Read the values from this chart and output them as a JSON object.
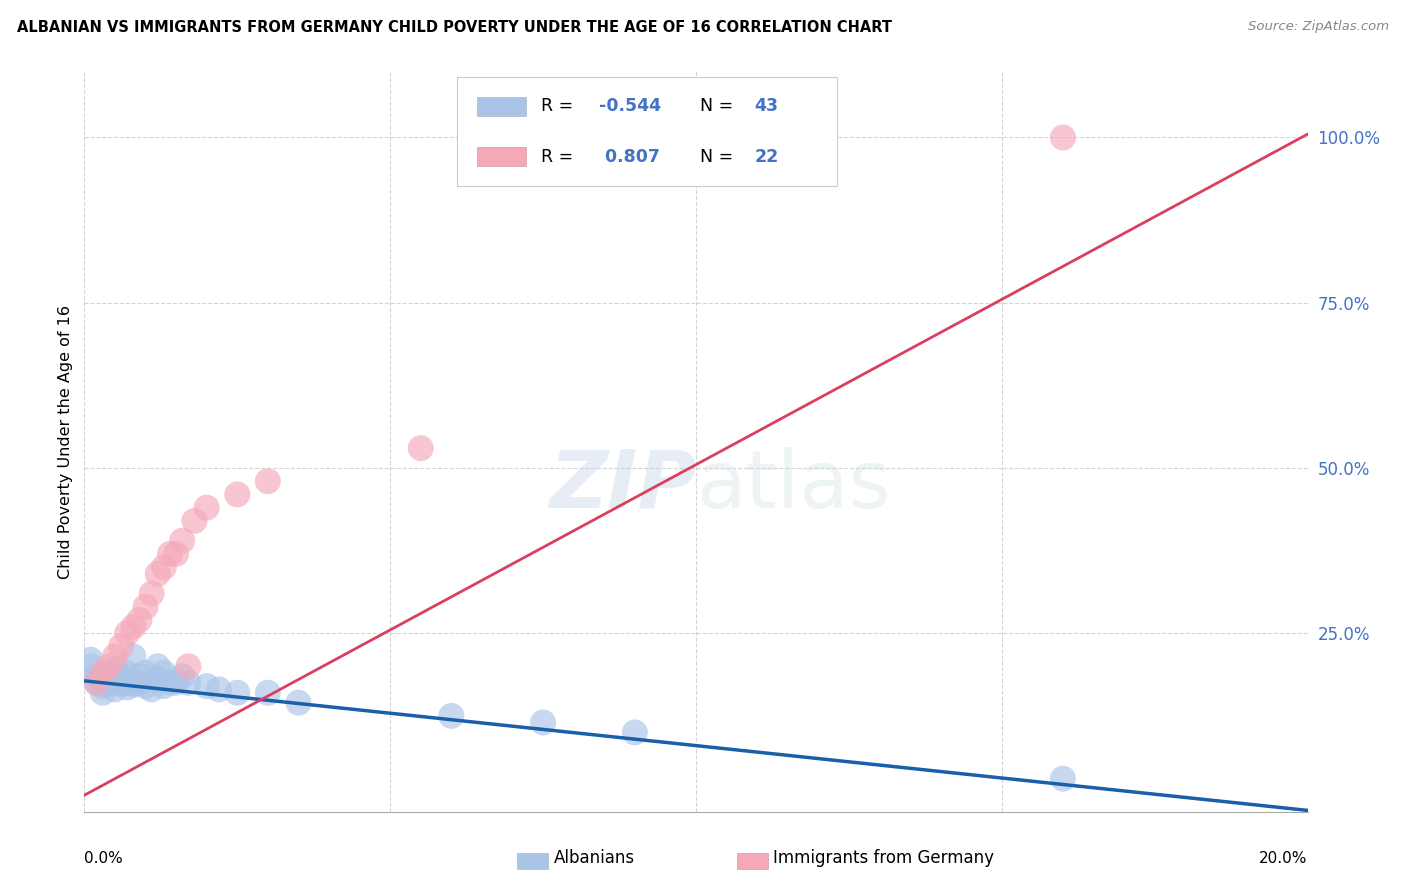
{
  "title": "ALBANIAN VS IMMIGRANTS FROM GERMANY CHILD POVERTY UNDER THE AGE OF 16 CORRELATION CHART",
  "source": "Source: ZipAtlas.com",
  "ylabel": "Child Poverty Under the Age of 16",
  "R1": -0.544,
  "N1": 43,
  "R2": 0.807,
  "N2": 22,
  "color1": "#aac4e8",
  "color2": "#f4a8b8",
  "line_color1": "#1a5fa8",
  "line_color2": "#d94060",
  "watermark": "ZIPatlas",
  "albanians_x": [
    0.001,
    0.001,
    0.002,
    0.002,
    0.003,
    0.003,
    0.003,
    0.004,
    0.004,
    0.005,
    0.005,
    0.005,
    0.006,
    0.006,
    0.006,
    0.007,
    0.007,
    0.007,
    0.008,
    0.008,
    0.008,
    0.009,
    0.009,
    0.01,
    0.01,
    0.011,
    0.012,
    0.012,
    0.013,
    0.013,
    0.014,
    0.015,
    0.016,
    0.017,
    0.02,
    0.022,
    0.025,
    0.03,
    0.035,
    0.06,
    0.075,
    0.09,
    0.16
  ],
  "albanians_y": [
    0.2,
    0.21,
    0.175,
    0.185,
    0.16,
    0.17,
    0.18,
    0.18,
    0.175,
    0.195,
    0.175,
    0.165,
    0.185,
    0.18,
    0.175,
    0.19,
    0.175,
    0.168,
    0.215,
    0.172,
    0.175,
    0.185,
    0.175,
    0.19,
    0.17,
    0.165,
    0.2,
    0.18,
    0.19,
    0.17,
    0.175,
    0.175,
    0.185,
    0.175,
    0.17,
    0.165,
    0.16,
    0.16,
    0.145,
    0.125,
    0.115,
    0.1,
    0.03
  ],
  "germany_x": [
    0.002,
    0.003,
    0.004,
    0.005,
    0.006,
    0.007,
    0.008,
    0.009,
    0.01,
    0.011,
    0.012,
    0.013,
    0.014,
    0.015,
    0.016,
    0.017,
    0.018,
    0.02,
    0.025,
    0.03,
    0.055,
    0.16
  ],
  "germany_y": [
    0.175,
    0.19,
    0.2,
    0.215,
    0.23,
    0.25,
    0.26,
    0.27,
    0.29,
    0.31,
    0.34,
    0.35,
    0.37,
    0.37,
    0.39,
    0.2,
    0.42,
    0.44,
    0.46,
    0.48,
    0.53,
    1.0
  ],
  "xlim": [
    0.0,
    0.2
  ],
  "ylim": [
    -0.02,
    1.1
  ]
}
